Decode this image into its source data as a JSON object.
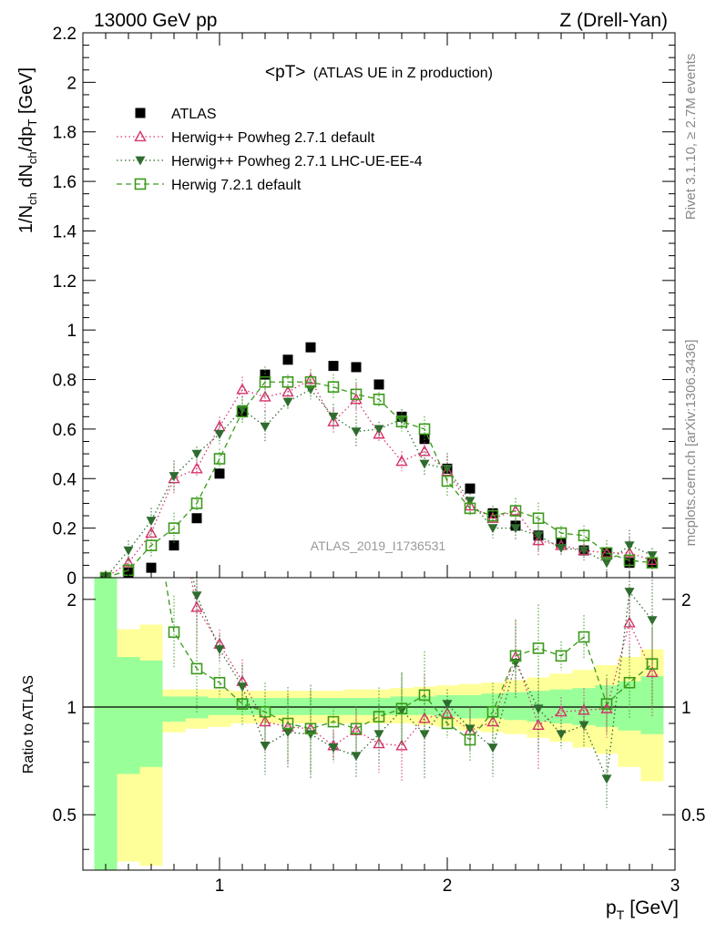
{
  "header": {
    "left": "13000 GeV pp",
    "right": "Z (Drell-Yan)"
  },
  "side": {
    "rivet": "Rivet 3.1.10, ≥ 2.7M events",
    "mcplots": "mcplots.cern.ch [arXiv:1306.3436]"
  },
  "colors": {
    "atlas": "#000000",
    "powheg_default": "#d6336e",
    "powheg_ue": "#2f6b2f",
    "herwig7": "#3a9a1a",
    "band_green": "#99ff99",
    "band_yellow": "#ffff99"
  },
  "chart_data": {
    "type": "scatter",
    "title": "<pT> (ATLAS UE in Z production)",
    "title_main": "<pT>",
    "title_sub": "(ATLAS UE in Z production)",
    "analysis_label": "ATLAS_2019_I1736531",
    "xlabel": "p_T [GeV]",
    "xlabel_main": "p",
    "xlabel_sub": "T",
    "xlabel_unit": "[GeV]",
    "ylabel": "1/N_ch dN_ch/dp_T [GeV]",
    "ratio_ylabel": "Ratio to ATLAS",
    "xlim": [
      0.4,
      3.0
    ],
    "ylim": [
      0,
      2.2
    ],
    "ratio_ylim": [
      0.35,
      2.3
    ],
    "x_ticks": [
      "1",
      "2",
      "3"
    ],
    "y_ticks": [
      "0",
      "0.2",
      "0.4",
      "0.6",
      "0.8",
      "1",
      "1.2",
      "1.4",
      "1.6",
      "1.8",
      "2",
      "2.2"
    ],
    "ratio_ticks": [
      "0.5",
      "1",
      "2"
    ],
    "x": [
      0.5,
      0.6,
      0.7,
      0.8,
      0.9,
      1.0,
      1.1,
      1.2,
      1.3,
      1.4,
      1.5,
      1.6,
      1.7,
      1.8,
      1.9,
      2.0,
      2.1,
      2.2,
      2.3,
      2.4,
      2.5,
      2.6,
      2.7,
      2.8,
      2.9
    ],
    "series": [
      {
        "name": "ATLAS",
        "key": "atlas",
        "marker": "square-filled",
        "values": [
          0.0,
          0.02,
          0.04,
          0.13,
          0.24,
          0.42,
          0.67,
          0.82,
          0.88,
          0.93,
          0.855,
          0.85,
          0.78,
          0.65,
          0.56,
          0.44,
          0.36,
          0.26,
          0.21,
          0.17,
          0.14,
          0.11,
          0.1,
          0.06,
          0.06
        ]
      },
      {
        "name": "Herwig++ Powheg 2.7.1 default",
        "key": "powheg_default",
        "marker": "triangle-open",
        "line": "dotted",
        "values": [
          0.0,
          0.06,
          0.18,
          0.4,
          0.44,
          0.61,
          0.76,
          0.73,
          0.75,
          0.8,
          0.63,
          0.72,
          0.58,
          0.47,
          0.51,
          0.43,
          0.29,
          0.24,
          0.27,
          0.15,
          0.13,
          0.11,
          0.1,
          0.1,
          0.07
        ]
      },
      {
        "name": "Herwig++ Powheg 2.7.1 LHC-UE-EE-4",
        "key": "powheg_ue",
        "marker": "triangle-down-filled",
        "line": "dotted",
        "values": [
          0.0,
          0.11,
          0.23,
          0.41,
          0.5,
          0.58,
          0.68,
          0.61,
          0.71,
          0.76,
          0.65,
          0.59,
          0.6,
          0.64,
          0.46,
          0.44,
          0.31,
          0.2,
          0.2,
          0.17,
          0.12,
          0.11,
          0.06,
          0.13,
          0.09
        ]
      },
      {
        "name": "Herwig 7.2.1 default",
        "key": "herwig7",
        "marker": "square-open",
        "line": "dashed",
        "values": [
          0.0,
          0.03,
          0.13,
          0.2,
          0.3,
          0.48,
          0.67,
          0.79,
          0.79,
          0.79,
          0.77,
          0.74,
          0.72,
          0.63,
          0.6,
          0.39,
          0.28,
          0.25,
          0.27,
          0.24,
          0.18,
          0.17,
          0.1,
          0.07,
          0.06
        ]
      }
    ],
    "ratios": {
      "powheg_default": [
        null,
        null,
        null,
        null,
        1.9,
        1.5,
        1.18,
        0.91,
        0.88,
        0.87,
        0.78,
        0.86,
        0.79,
        0.78,
        0.93,
        0.96,
        0.86,
        0.91,
        1.38,
        0.89,
        0.97,
        0.98,
        0.99,
        1.72,
        1.25
      ],
      "powheg_ue": [
        null,
        null,
        null,
        null,
        2.05,
        1.45,
        1.14,
        0.78,
        0.85,
        0.84,
        0.77,
        0.73,
        0.84,
        0.98,
        0.84,
        1.02,
        0.87,
        0.77,
        1.33,
        0.99,
        0.84,
        0.89,
        0.63,
        2.1,
        1.75
      ],
      "herwig7": [
        null,
        null,
        null,
        1.62,
        1.28,
        1.17,
        1.02,
        0.97,
        0.9,
        0.87,
        0.91,
        0.87,
        0.94,
        0.99,
        1.08,
        0.9,
        0.81,
        0.97,
        1.39,
        1.46,
        1.39,
        1.57,
        1.02,
        1.17,
        1.32
      ]
    },
    "ratio_band": {
      "edges": [
        0.45,
        0.55,
        0.65,
        0.75,
        0.85,
        0.95,
        1.05,
        1.15,
        1.25,
        1.35,
        1.45,
        1.55,
        1.65,
        1.75,
        1.85,
        1.95,
        2.05,
        2.15,
        2.25,
        2.35,
        2.45,
        2.55,
        2.65,
        2.75,
        2.85,
        2.95
      ],
      "green_lo": [
        0.35,
        0.65,
        0.68,
        0.91,
        0.93,
        0.95,
        0.95,
        0.95,
        0.95,
        0.95,
        0.95,
        0.95,
        0.95,
        0.95,
        0.95,
        0.94,
        0.93,
        0.93,
        0.92,
        0.91,
        0.9,
        0.89,
        0.88,
        0.86,
        0.84
      ],
      "green_hi": [
        2.3,
        1.38,
        1.35,
        1.07,
        1.07,
        1.06,
        1.06,
        1.06,
        1.06,
        1.06,
        1.06,
        1.06,
        1.06,
        1.07,
        1.07,
        1.08,
        1.08,
        1.09,
        1.1,
        1.11,
        1.12,
        1.13,
        1.15,
        1.18,
        1.22
      ],
      "yellow_lo": [
        0.35,
        0.37,
        0.36,
        0.85,
        0.87,
        0.88,
        0.9,
        0.9,
        0.9,
        0.9,
        0.9,
        0.9,
        0.9,
        0.9,
        0.89,
        0.88,
        0.86,
        0.85,
        0.84,
        0.82,
        0.8,
        0.77,
        0.74,
        0.68,
        0.62
      ],
      "yellow_hi": [
        2.3,
        1.65,
        1.7,
        1.12,
        1.12,
        1.12,
        1.11,
        1.11,
        1.11,
        1.11,
        1.11,
        1.12,
        1.12,
        1.13,
        1.14,
        1.15,
        1.16,
        1.17,
        1.19,
        1.21,
        1.24,
        1.27,
        1.31,
        1.38,
        1.45
      ]
    }
  }
}
